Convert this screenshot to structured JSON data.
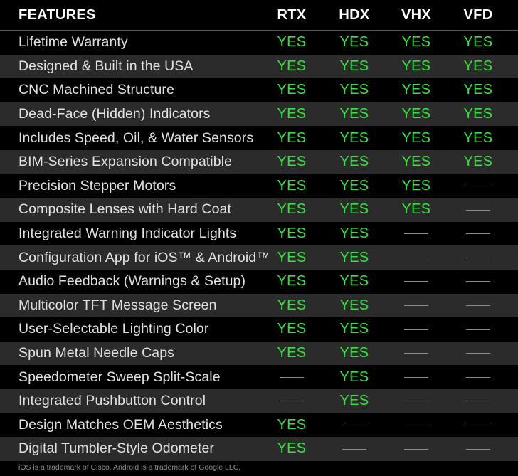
{
  "header": {
    "features_label": "FEATURES",
    "columns": [
      "RTX",
      "HDX",
      "VHX",
      "VFD"
    ]
  },
  "colors": {
    "yes": "#33e33d",
    "background": "#000000",
    "alt_row": "#2b2b2b",
    "text": "#e2e2e2"
  },
  "rows": [
    {
      "feature": "Lifetime Warranty",
      "values": [
        "YES",
        "YES",
        "YES",
        "YES"
      ]
    },
    {
      "feature": "Designed & Built in the USA",
      "values": [
        "YES",
        "YES",
        "YES",
        "YES"
      ]
    },
    {
      "feature": "CNC Machined Structure",
      "values": [
        "YES",
        "YES",
        "YES",
        "YES"
      ]
    },
    {
      "feature": "Dead-Face (Hidden) Indicators",
      "values": [
        "YES",
        "YES",
        "YES",
        "YES"
      ]
    },
    {
      "feature": "Includes Speed, Oil, & Water Sensors",
      "values": [
        "YES",
        "YES",
        "YES",
        "YES"
      ]
    },
    {
      "feature": "BIM-Series Expansion Compatible",
      "values": [
        "YES",
        "YES",
        "YES",
        "YES"
      ]
    },
    {
      "feature": "Precision Stepper Motors",
      "values": [
        "YES",
        "YES",
        "YES",
        "—"
      ]
    },
    {
      "feature": "Composite Lenses with Hard Coat",
      "values": [
        "YES",
        "YES",
        "YES",
        "—"
      ]
    },
    {
      "feature": "Integrated Warning Indicator Lights",
      "values": [
        "YES",
        "YES",
        "—",
        "—"
      ]
    },
    {
      "feature": "Configuration App for iOS™ & Android™",
      "values": [
        "YES",
        "YES",
        "—",
        "—"
      ]
    },
    {
      "feature": "Audio Feedback (Warnings & Setup)",
      "values": [
        "YES",
        "YES",
        "—",
        "—"
      ]
    },
    {
      "feature": "Multicolor TFT Message Screen",
      "values": [
        "YES",
        "YES",
        "—",
        "—"
      ]
    },
    {
      "feature": "User-Selectable Lighting Color",
      "values": [
        "YES",
        "YES",
        "—",
        "—"
      ]
    },
    {
      "feature": "Spun Metal Needle Caps",
      "values": [
        "YES",
        "YES",
        "—",
        "—"
      ]
    },
    {
      "feature": "Speedometer Sweep Split-Scale",
      "values": [
        "—",
        "YES",
        "—",
        "—"
      ]
    },
    {
      "feature": "Integrated Pushbutton Control",
      "values": [
        "—",
        "YES",
        "—",
        "—"
      ]
    },
    {
      "feature": "Design Matches OEM Aesthetics",
      "values": [
        "YES",
        "—",
        "—",
        "—"
      ]
    },
    {
      "feature": "Digital Tumbler-Style Odometer",
      "values": [
        "YES",
        "—",
        "—",
        "—"
      ]
    }
  ],
  "footnote": "iOS is a trademark of Cisco. Android is a trademark of Google LLC."
}
